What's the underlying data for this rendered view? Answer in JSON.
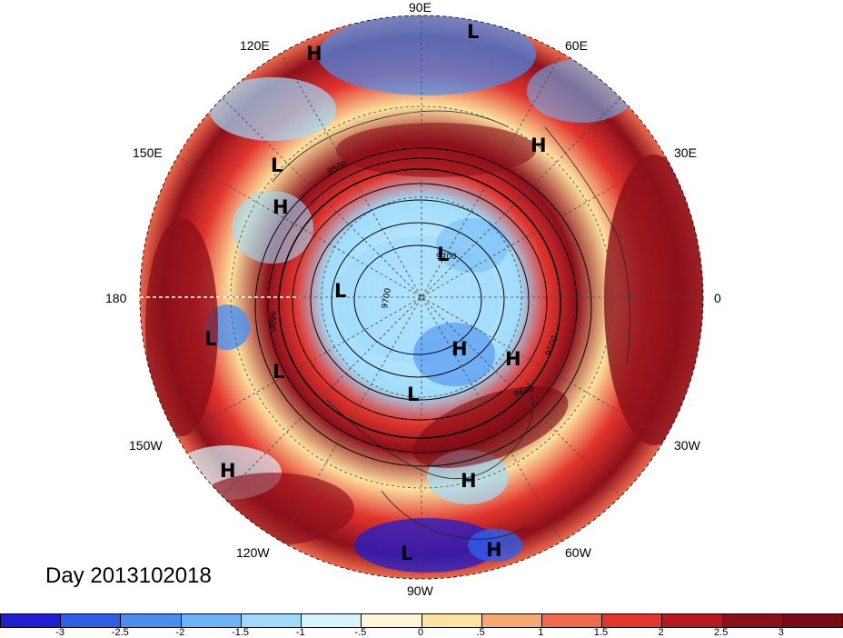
{
  "map": {
    "title": "Day 2013102018",
    "longitude_labels": {
      "top": "90E",
      "upper_left": "120E",
      "upper_right": "60E",
      "left_upper": "150E",
      "right_upper": "30E",
      "left": "180",
      "right": "0",
      "left_lower": "150W",
      "right_lower": "30W",
      "lower_left": "120W",
      "lower_right": "60W",
      "bottom": "90W"
    },
    "contour_labels": [
      "9500",
      "9600",
      "9700",
      "9500",
      "9600",
      "9700"
    ],
    "pressure_centers": [
      "L",
      "H",
      "H",
      "L",
      "H",
      "L",
      "H",
      "L",
      "L",
      "H",
      "L",
      "L",
      "H",
      "H",
      "L",
      "H"
    ]
  },
  "colorbar": {
    "labels": [
      "-3",
      "-2.5",
      "-2",
      "-1.5",
      "-1",
      "-.5",
      "0",
      ".5",
      "1",
      "1.5",
      "2",
      "2.5",
      "3"
    ],
    "colors": [
      "#1f1fd0",
      "#2f5fe8",
      "#4a8ef0",
      "#6cb4f6",
      "#9fdcfc",
      "#d8f4fe",
      "#fff6d8",
      "#fde3a0",
      "#f6a870",
      "#ee6a4c",
      "#e2352e",
      "#b81620",
      "#8c0f1a",
      "#7a0a14"
    ]
  }
}
